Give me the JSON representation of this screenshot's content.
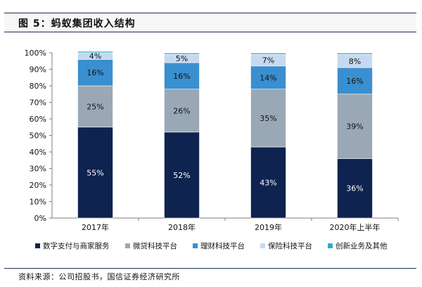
{
  "figure": {
    "title": "图 5：蚂蚁集团收入结构",
    "source": "资料来源：公司招股书，国信证券经济研究所"
  },
  "colors": {
    "series": [
      "#0f2350",
      "#9aa8b6",
      "#3a8fd0",
      "#c6d9f0",
      "#34a7c8"
    ],
    "label_on_dark": "#ffffff",
    "label_on_light": "#111111"
  },
  "chart_data": {
    "type": "bar",
    "stacked": true,
    "categories": [
      "2017年",
      "2018年",
      "2019年",
      "2020年上半年"
    ],
    "series": [
      {
        "name": "数字支付与商家服务",
        "values": [
          55,
          52,
          43,
          36
        ],
        "labels": [
          "55%",
          "52%",
          "43%",
          "36%"
        ]
      },
      {
        "name": "微贷科技平台",
        "values": [
          25,
          26,
          35,
          39
        ],
        "labels": [
          "25%",
          "26%",
          "35%",
          "39%"
        ]
      },
      {
        "name": "理财科技平台",
        "values": [
          16,
          16,
          14,
          16
        ],
        "labels": [
          "16%",
          "16%",
          "14%",
          "16%"
        ]
      },
      {
        "name": "保险科技平台",
        "values": [
          4,
          5,
          7,
          8
        ],
        "labels": [
          "4%",
          "5%",
          "7%",
          "8%"
        ]
      },
      {
        "name": "创新业务及其他",
        "values": [
          0.8,
          0.8,
          0.8,
          0.8
        ],
        "labels": [
          "",
          "",
          "",
          ""
        ]
      }
    ],
    "ylim": [
      0,
      100
    ],
    "yticks": [
      "0%",
      "10%",
      "20%",
      "30%",
      "40%",
      "50%",
      "60%",
      "70%",
      "80%",
      "90%",
      "100%"
    ],
    "grid": false,
    "legend": "bottom"
  }
}
